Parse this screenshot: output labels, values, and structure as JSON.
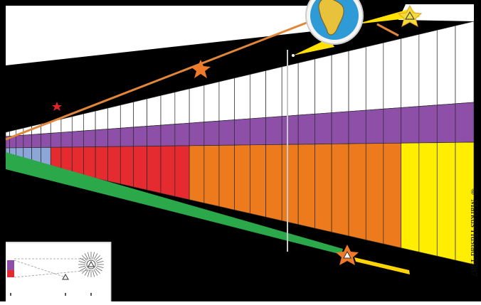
{
  "credit": "© Markus Hustad 1987",
  "colors": {
    "background": "#000000",
    "white_band": "#ffffff",
    "purple_band": "#8e4fa9",
    "blue_band": "#8da6d8",
    "red_band": "#e52a30",
    "orange_band": "#ee7a1e",
    "yellow_band": "#ffee00",
    "green_beam": "#2aa84a",
    "orange_line": "#e2873a",
    "star_orange": "#ef7a2a",
    "star_red": "#e0242c",
    "globe_ocean": "#2f9bd6",
    "globe_land": "#e8c23a",
    "separator": "#c8c8c8"
  },
  "icons": {
    "earth": "globe-icon",
    "star": "star-icon",
    "triangle": "triangle-icon",
    "sun": "sun-icon"
  }
}
